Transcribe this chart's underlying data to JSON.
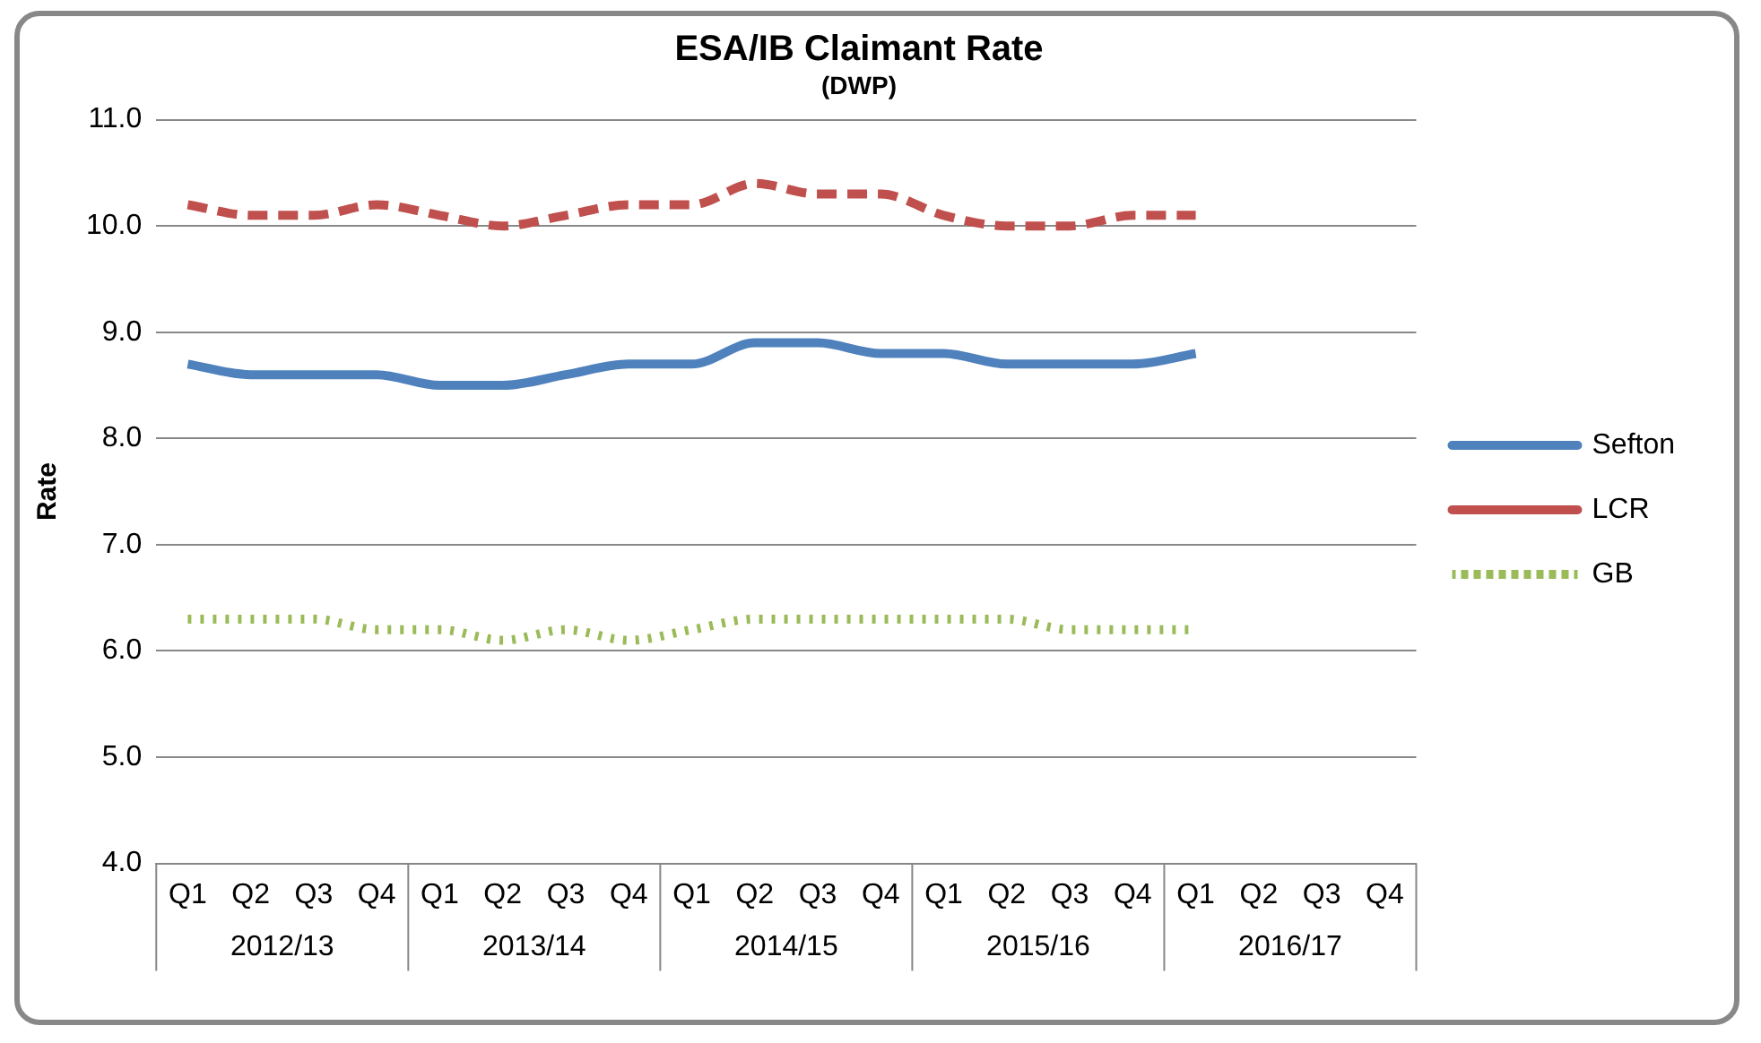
{
  "chart_data": {
    "type": "line",
    "title": "ESA/IB Claimant Rate",
    "subtitle": "(DWP)",
    "ylabel": "Rate",
    "categories": [
      "Q1",
      "Q2",
      "Q3",
      "Q4",
      "Q1",
      "Q2",
      "Q3",
      "Q4",
      "Q1",
      "Q2",
      "Q3",
      "Q4",
      "Q1",
      "Q2",
      "Q3",
      "Q4",
      "Q1",
      "Q2",
      "Q3",
      "Q4"
    ],
    "annotations": [
      "2012/13",
      "2013/14",
      "2014/15",
      "2015/16",
      "2016/17"
    ],
    "series": [
      {
        "name": "Sefton",
        "color": "#4f81bd",
        "line_style": "solid",
        "values": [
          8.7,
          8.6,
          8.6,
          8.6,
          8.5,
          8.5,
          8.6,
          8.7,
          8.7,
          8.9,
          8.9,
          8.8,
          8.8,
          8.7,
          8.7,
          8.7,
          8.8,
          null,
          null,
          null
        ]
      },
      {
        "name": "LCR",
        "color": "#c0504d",
        "line_style": "dashed",
        "values": [
          10.2,
          10.1,
          10.1,
          10.2,
          10.1,
          10.0,
          10.1,
          10.2,
          10.2,
          10.4,
          10.3,
          10.3,
          10.1,
          10.0,
          10.0,
          10.1,
          10.1,
          null,
          null,
          null
        ]
      },
      {
        "name": "GB",
        "color": "#9bbb59",
        "line_style": "dotted",
        "values": [
          6.3,
          6.3,
          6.3,
          6.2,
          6.2,
          6.1,
          6.2,
          6.1,
          6.2,
          6.3,
          6.3,
          6.3,
          6.3,
          6.3,
          6.2,
          6.2,
          6.2,
          null,
          null,
          null
        ]
      }
    ],
    "ylim": [
      4,
      11
    ],
    "yticks": [
      {
        "value": 4,
        "label": "4.0"
      },
      {
        "value": 5,
        "label": "5.0"
      },
      {
        "value": 6,
        "label": "6.0"
      },
      {
        "value": 7,
        "label": "7.0"
      },
      {
        "value": 8,
        "label": "8.0"
      },
      {
        "value": 9,
        "label": "9.0"
      },
      {
        "value": 10,
        "label": "10.0"
      },
      {
        "value": 11,
        "label": "11.0"
      }
    ],
    "grid": "y",
    "legend": "right",
    "marker": "none"
  }
}
